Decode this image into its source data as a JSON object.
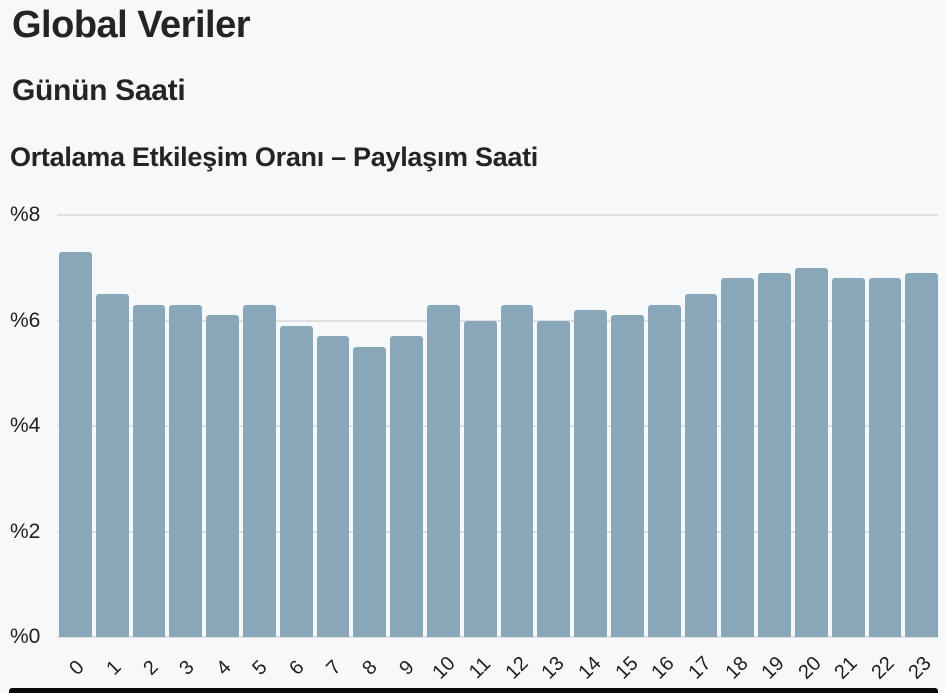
{
  "header": {
    "title": "Global Veriler",
    "subtitle": "Günün Saati",
    "chart_title": "Ortalama Etkileşim Oranı – Paylaşım Saati"
  },
  "chart_data": {
    "type": "bar",
    "title": "Ortalama Etkileşim Oranı – Paylaşım Saati",
    "categories": [
      "0",
      "1",
      "2",
      "3",
      "4",
      "5",
      "6",
      "7",
      "8",
      "9",
      "10",
      "11",
      "12",
      "13",
      "14",
      "15",
      "16",
      "17",
      "18",
      "19",
      "20",
      "21",
      "22",
      "23"
    ],
    "values": [
      7.3,
      6.5,
      6.3,
      6.3,
      6.1,
      6.3,
      5.9,
      5.7,
      5.5,
      5.7,
      6.3,
      6.0,
      6.3,
      6.0,
      6.2,
      6.1,
      6.3,
      6.5,
      6.8,
      6.9,
      7.0,
      6.8,
      6.8,
      6.9
    ],
    "value_unit": "%",
    "xlabel": "",
    "ylabel": "",
    "ylim": [
      0,
      8
    ],
    "y_ticks": [
      {
        "label": "%8",
        "value": 8
      },
      {
        "label": "%6",
        "value": 6
      },
      {
        "label": "%4",
        "value": 4
      },
      {
        "label": "%2",
        "value": 2
      },
      {
        "label": "%0",
        "value": 0
      }
    ],
    "grid": true,
    "legend_position": "none"
  },
  "colors": {
    "background": "#f7f8fa",
    "bar": "#89a7b9",
    "gridline": "#dddfe2",
    "text": "#242424",
    "bottom_bar": "#0a0a0a"
  }
}
